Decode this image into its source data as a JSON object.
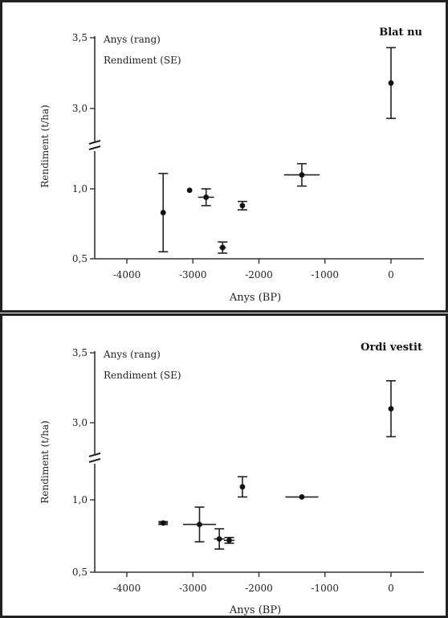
{
  "chart_data": [
    {
      "type": "scatter",
      "title": "Blat nu",
      "xlabel": "Anys (BP)",
      "ylabel": "Rendiment (t/ha)",
      "legend": [
        "Anys (rang)",
        "Rendiment (SE)"
      ],
      "legend_placement": "top-left",
      "grid": false,
      "xlim": [
        -4500,
        500
      ],
      "x_ticks": [
        "-4000",
        "-3000",
        "-2000",
        "-1000",
        "0"
      ],
      "y_ticks": [
        "0,5",
        "1,0",
        "3,0",
        "3,5"
      ],
      "y_axis_break": [
        1.25,
        2.75
      ],
      "points": [
        {
          "x": -3450,
          "y": 0.83,
          "y_err": 0.28,
          "x_err": 0
        },
        {
          "x": -3050,
          "y": 0.99,
          "y_err": 0,
          "x_err": 0
        },
        {
          "x": -2800,
          "y": 0.94,
          "y_err": 0.06,
          "x_err": 120
        },
        {
          "x": -2550,
          "y": 0.58,
          "y_err": 0.04,
          "x_err": 50
        },
        {
          "x": -2250,
          "y": 0.88,
          "y_err": 0.03,
          "x_err": 30
        },
        {
          "x": -1350,
          "y": 1.1,
          "y_err": 0.08,
          "x_err": 270
        },
        {
          "x": 0,
          "y": 3.18,
          "y_err": 0.25,
          "x_err": 0
        }
      ]
    },
    {
      "type": "scatter",
      "title": "Ordi vestit",
      "xlabel": "Anys (BP)",
      "ylabel": "Rendiment (t/ha)",
      "legend": [
        "Anys (rang)",
        "Rendiment (SE)"
      ],
      "legend_placement": "top-left",
      "grid": false,
      "xlim": [
        -4500,
        500
      ],
      "x_ticks": [
        "-4000",
        "-3000",
        "-2000",
        "-1000",
        "0"
      ],
      "y_ticks": [
        "0,5",
        "1,0",
        "3,0",
        "3,5"
      ],
      "y_axis_break": [
        1.25,
        2.75
      ],
      "points": [
        {
          "x": -3450,
          "y": 0.84,
          "y_err": 0.01,
          "x_err": 70
        },
        {
          "x": -2900,
          "y": 0.83,
          "y_err": 0.12,
          "x_err": 250
        },
        {
          "x": -2600,
          "y": 0.73,
          "y_err": 0.07,
          "x_err": 80
        },
        {
          "x": -2450,
          "y": 0.72,
          "y_err": 0.02,
          "x_err": 80
        },
        {
          "x": -2250,
          "y": 1.09,
          "y_err": 0.07,
          "x_err": 0
        },
        {
          "x": -1350,
          "y": 1.02,
          "y_err": 0,
          "x_err": 250
        },
        {
          "x": 0,
          "y": 3.1,
          "y_err": 0.2,
          "x_err": 0
        }
      ]
    }
  ]
}
